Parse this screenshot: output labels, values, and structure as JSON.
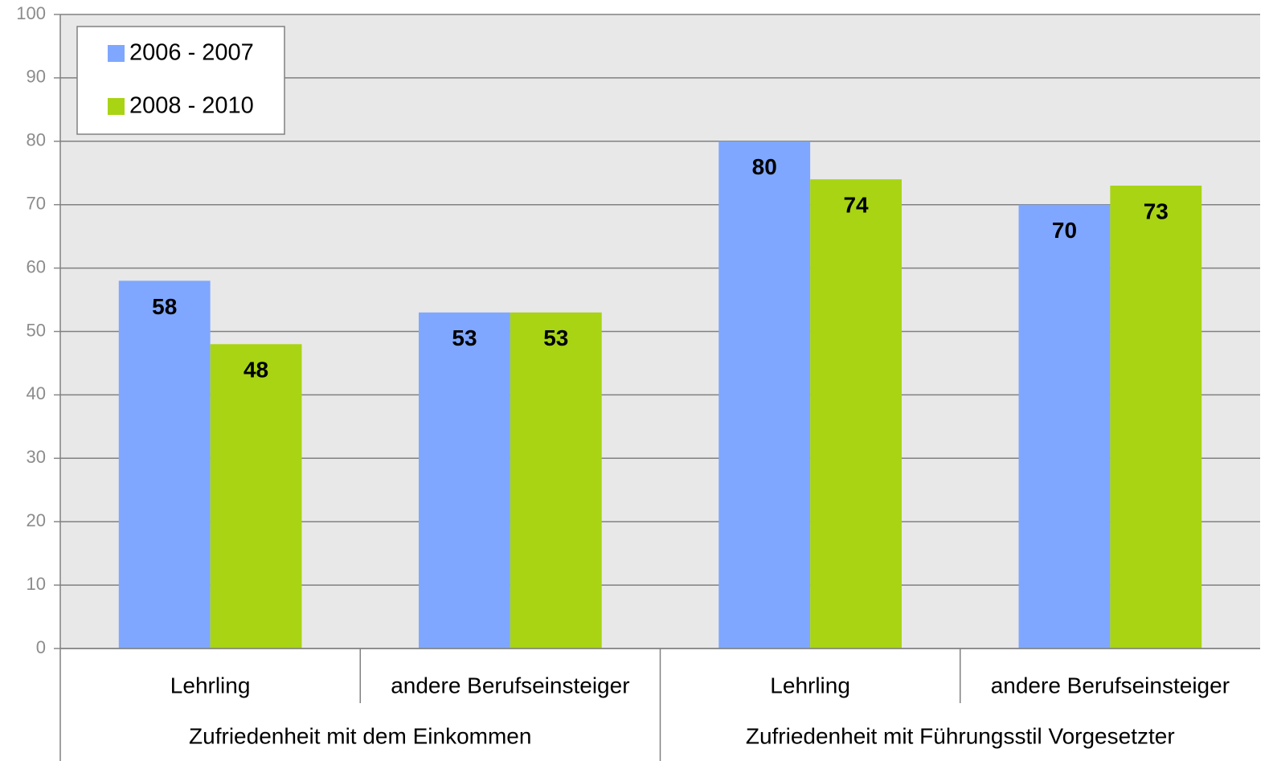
{
  "chart_data": {
    "type": "bar",
    "groups": [
      {
        "name": "Zufriedenheit mit dem Einkommen",
        "categories": [
          "Lehrling",
          "andere Berufseinsteiger"
        ]
      },
      {
        "name": "Zufriedenheit mit Führungsstil Vorgesetzter",
        "categories": [
          "Lehrling",
          "andere Berufseinsteiger"
        ]
      }
    ],
    "series": [
      {
        "name": "2006 - 2007",
        "color": "#7fa7ff",
        "values": [
          58,
          53,
          80,
          70
        ]
      },
      {
        "name": "2008 - 2010",
        "color": "#a8d414",
        "values": [
          48,
          53,
          74,
          73
        ]
      }
    ],
    "ylim": [
      0,
      100
    ],
    "yticks": [
      0,
      10,
      20,
      30,
      40,
      50,
      60,
      70,
      80,
      90,
      100
    ],
    "grid": true,
    "legend": "top-left"
  }
}
